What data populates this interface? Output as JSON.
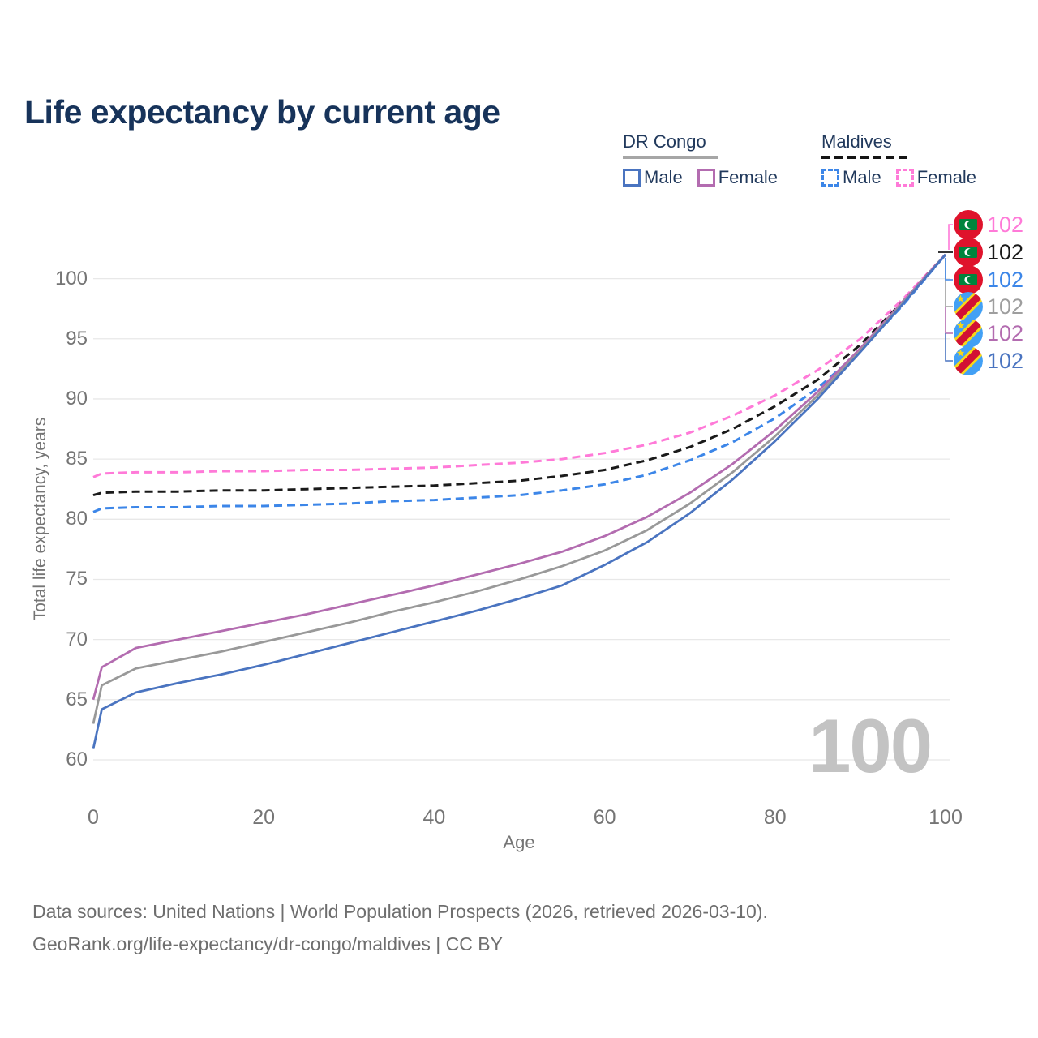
{
  "title": "Life expectancy by current age",
  "legend": {
    "groups": [
      {
        "label": "DR Congo",
        "line_style": "solid",
        "underline_color": "#a6a6a6",
        "items": [
          {
            "label": "Male",
            "color": "#4a74c0",
            "dash": false
          },
          {
            "label": "Female",
            "color": "#b36cb0",
            "dash": false
          }
        ]
      },
      {
        "label": "Maldives",
        "line_style": "dashed",
        "underline_color": "#151515",
        "items": [
          {
            "label": "Male",
            "color": "#3c86e8",
            "dash": true
          },
          {
            "label": "Female",
            "color": "#ff7ad8",
            "dash": true
          }
        ]
      }
    ]
  },
  "chart_data": {
    "type": "line",
    "title": "Life expectancy by current age",
    "xlabel": "Age",
    "ylabel": "Total life expectancy, years",
    "xlim": [
      0,
      100
    ],
    "ylim": [
      60,
      102.5
    ],
    "xticks": [
      0,
      20,
      40,
      60,
      80,
      100
    ],
    "yticks": [
      60,
      65,
      70,
      75,
      80,
      85,
      90,
      95,
      100
    ],
    "grid": "horizontal",
    "legend_position": "top-right",
    "x": [
      0,
      1,
      5,
      10,
      15,
      20,
      25,
      30,
      35,
      40,
      45,
      50,
      55,
      60,
      65,
      70,
      75,
      80,
      85,
      90,
      95,
      100
    ],
    "series": [
      {
        "name": "DR Congo Male",
        "country": "DR Congo",
        "sex": "Male",
        "color": "#4a74c0",
        "dash": false,
        "values": [
          60.9,
          64.2,
          65.6,
          66.4,
          67.1,
          67.9,
          68.8,
          69.7,
          70.6,
          71.5,
          72.4,
          73.4,
          74.5,
          76.2,
          78.1,
          80.5,
          83.3,
          86.5,
          90.0,
          93.9,
          97.9,
          102
        ]
      },
      {
        "name": "DR Congo Both sexes",
        "country": "DR Congo",
        "sex": "Both",
        "color": "#999999",
        "dash": false,
        "values": [
          63.0,
          66.2,
          67.6,
          68.3,
          69.0,
          69.8,
          70.6,
          71.4,
          72.3,
          73.1,
          74.0,
          75.0,
          76.1,
          77.4,
          79.1,
          81.3,
          83.9,
          86.9,
          90.3,
          94.0,
          98.0,
          102
        ]
      },
      {
        "name": "DR Congo Female",
        "country": "DR Congo",
        "sex": "Female",
        "color": "#b36cb0",
        "dash": false,
        "values": [
          65.0,
          67.7,
          69.3,
          70.0,
          70.7,
          71.4,
          72.1,
          72.9,
          73.7,
          74.5,
          75.4,
          76.3,
          77.3,
          78.6,
          80.2,
          82.2,
          84.6,
          87.4,
          90.6,
          94.2,
          98.1,
          102
        ]
      },
      {
        "name": "Maldives Male",
        "country": "Maldives",
        "sex": "Male",
        "color": "#3c86e8",
        "dash": true,
        "values": [
          80.6,
          80.9,
          81.0,
          81.0,
          81.1,
          81.1,
          81.2,
          81.3,
          81.5,
          81.6,
          81.8,
          82.0,
          82.4,
          82.9,
          83.7,
          84.9,
          86.4,
          88.4,
          90.9,
          94.0,
          97.8,
          102
        ]
      },
      {
        "name": "Maldives Both sexes",
        "country": "Maldives",
        "sex": "Both",
        "color": "#1a1a1a",
        "dash": true,
        "values": [
          82.0,
          82.2,
          82.3,
          82.3,
          82.4,
          82.4,
          82.5,
          82.6,
          82.7,
          82.8,
          83.0,
          83.2,
          83.6,
          84.1,
          84.9,
          86.0,
          87.5,
          89.4,
          91.6,
          94.5,
          98.1,
          102
        ]
      },
      {
        "name": "Maldives Female",
        "country": "Maldives",
        "sex": "Female",
        "color": "#ff7ad8",
        "dash": true,
        "values": [
          83.5,
          83.8,
          83.9,
          83.9,
          84.0,
          84.0,
          84.1,
          84.1,
          84.2,
          84.3,
          84.5,
          84.7,
          85.0,
          85.5,
          86.2,
          87.2,
          88.6,
          90.3,
          92.4,
          95.0,
          98.3,
          102
        ]
      }
    ],
    "end_labels": [
      {
        "series": "Maldives Female",
        "flag": "maldives",
        "value": "102",
        "color": "#ff7ad8"
      },
      {
        "series": "Maldives Both sexes",
        "flag": "maldives",
        "value": "102",
        "color": "#1a1a1a"
      },
      {
        "series": "Maldives Male",
        "flag": "maldives",
        "value": "102",
        "color": "#3c86e8"
      },
      {
        "series": "DR Congo Both sexes",
        "flag": "drc",
        "value": "102",
        "color": "#9e9e9e"
      },
      {
        "series": "DR Congo Female",
        "flag": "drc",
        "value": "102",
        "color": "#b36cb0"
      },
      {
        "series": "DR Congo Male",
        "flag": "drc",
        "value": "102",
        "color": "#4a74c0"
      }
    ],
    "age_counter": "100"
  },
  "footer": {
    "line1": "Data sources: United Nations | World Population Prospects (2026, retrieved 2026-03-10).",
    "line2": "GeoRank.org/life-expectancy/dr-congo/maldives | CC BY"
  }
}
